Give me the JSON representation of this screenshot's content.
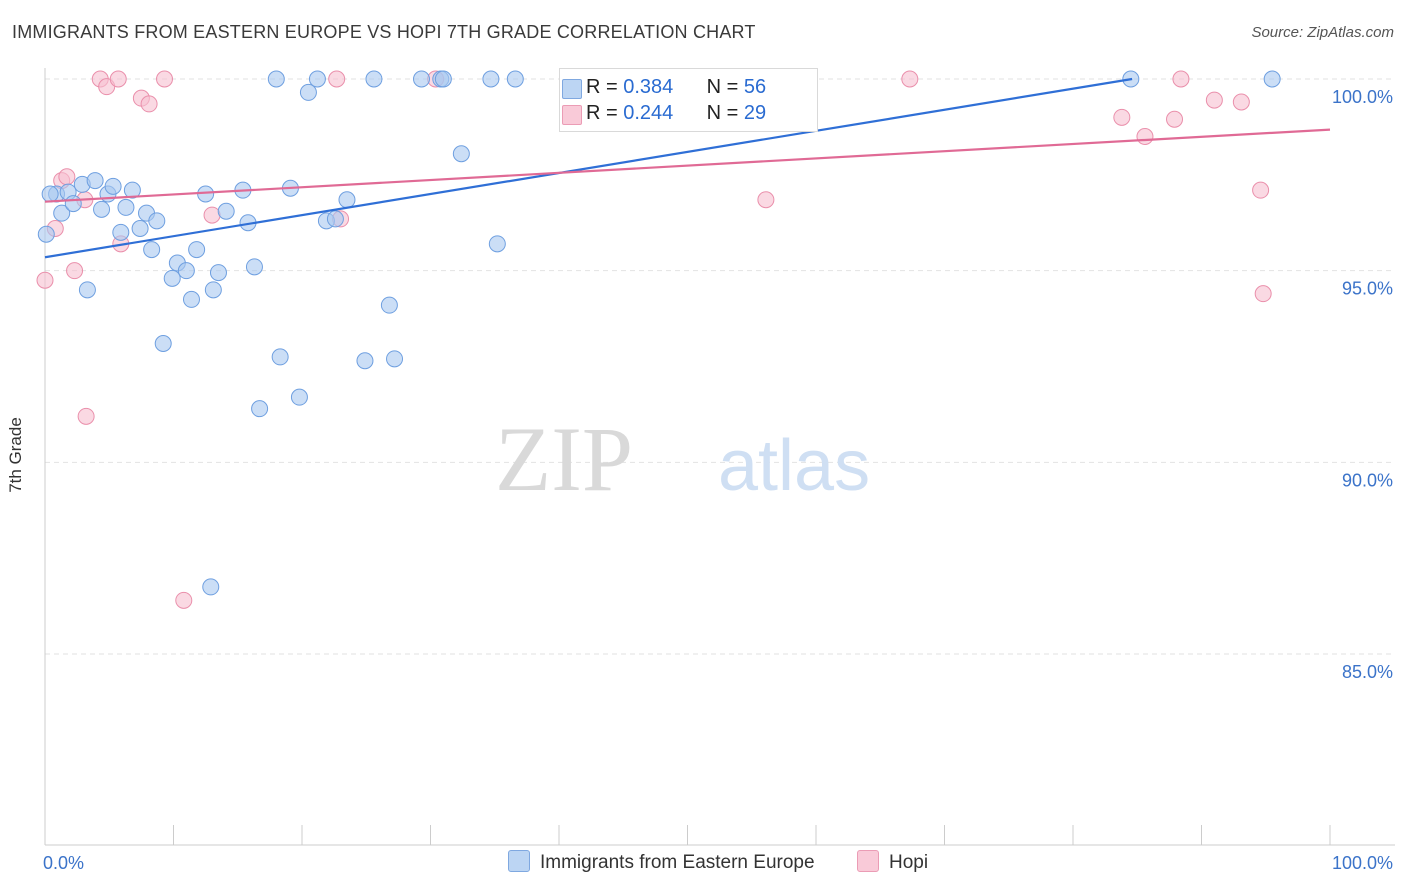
{
  "title": "IMMIGRANTS FROM EASTERN EUROPE VS HOPI 7TH GRADE CORRELATION CHART",
  "source": "Source: ZipAtlas.com",
  "watermark": {
    "zip": "ZIP",
    "atlas": "atlas"
  },
  "colors": {
    "blue_fill": "#a9c8f0",
    "blue_stroke": "#6e9fe0",
    "blue_line": "#2f6fd6",
    "pink_fill": "#f7bfd0",
    "pink_stroke": "#ea8fab",
    "pink_line": "#e06a95",
    "tick_label": "#3b73c9",
    "grid": "#e2e2e2"
  },
  "legend": {
    "rows": [
      {
        "r_label": "R =",
        "r_value": "0.384",
        "n_label": "N =",
        "n_value": "56"
      },
      {
        "r_label": "R =",
        "r_value": "0.244",
        "n_label": "N =",
        "n_value": "29"
      }
    ]
  },
  "bottom_legend": {
    "series1": "Immigrants from Eastern Europe",
    "series2": "Hopi"
  },
  "chart_data": {
    "type": "scatter",
    "title": "IMMIGRANTS FROM EASTERN EUROPE VS HOPI 7TH GRADE CORRELATION CHART",
    "xlabel": "",
    "ylabel": "7th Grade",
    "xlim": [
      0,
      100
    ],
    "ylim": [
      80.5,
      100.5
    ],
    "x_tick_labels": [
      "0.0%",
      "100.0%"
    ],
    "y_ticks": [
      85,
      90,
      95,
      100
    ],
    "y_tick_labels": [
      "85.0%",
      "90.0%",
      "95.0%",
      "100.0%"
    ],
    "grid": true,
    "legend_position": "top-center",
    "series": [
      {
        "name": "Immigrants from Eastern Europe",
        "color": "#a9c8f0",
        "trend": {
          "x": [
            0,
            84.6
          ],
          "y": [
            95.35,
            100.0
          ]
        },
        "points": [
          [
            0.1,
            95.95
          ],
          [
            0.9,
            97.0
          ],
          [
            1.3,
            96.5
          ],
          [
            1.8,
            97.05
          ],
          [
            2.2,
            96.75
          ],
          [
            2.9,
            97.25
          ],
          [
            3.3,
            94.5
          ],
          [
            3.9,
            97.35
          ],
          [
            4.4,
            96.6
          ],
          [
            4.9,
            97.0
          ],
          [
            5.3,
            97.2
          ],
          [
            5.9,
            96.0
          ],
          [
            6.3,
            96.65
          ],
          [
            6.8,
            97.1
          ],
          [
            7.4,
            96.1
          ],
          [
            7.9,
            96.5
          ],
          [
            8.3,
            95.55
          ],
          [
            8.7,
            96.3
          ],
          [
            9.2,
            93.1
          ],
          [
            9.9,
            94.8
          ],
          [
            10.3,
            95.2
          ],
          [
            11.0,
            95.0
          ],
          [
            11.4,
            94.25
          ],
          [
            11.8,
            95.55
          ],
          [
            12.5,
            97.0
          ],
          [
            13.1,
            94.5
          ],
          [
            13.5,
            94.95
          ],
          [
            14.1,
            96.55
          ],
          [
            15.4,
            97.1
          ],
          [
            15.8,
            96.25
          ],
          [
            16.3,
            95.1
          ],
          [
            16.7,
            91.4
          ],
          [
            18.0,
            100.0
          ],
          [
            18.3,
            92.75
          ],
          [
            19.1,
            97.15
          ],
          [
            19.8,
            91.7
          ],
          [
            20.5,
            99.65
          ],
          [
            21.2,
            100.0
          ],
          [
            21.9,
            96.3
          ],
          [
            22.6,
            96.35
          ],
          [
            23.5,
            96.85
          ],
          [
            24.9,
            92.65
          ],
          [
            25.6,
            100.0
          ],
          [
            26.8,
            94.1
          ],
          [
            27.2,
            92.7
          ],
          [
            29.3,
            100.0
          ],
          [
            30.8,
            100.0
          ],
          [
            32.4,
            98.05
          ],
          [
            34.7,
            100.0
          ],
          [
            35.2,
            95.7
          ],
          [
            36.6,
            100.0
          ],
          [
            12.9,
            86.75
          ],
          [
            84.5,
            100.0
          ],
          [
            95.5,
            100.0
          ],
          [
            31.0,
            100.0
          ],
          [
            0.4,
            97.0
          ]
        ]
      },
      {
        "name": "Hopi",
        "color": "#f7bfd0",
        "trend": {
          "x": [
            0,
            100
          ],
          "y": [
            96.8,
            98.68
          ]
        },
        "points": [
          [
            0.0,
            94.75
          ],
          [
            0.8,
            96.1
          ],
          [
            1.3,
            97.35
          ],
          [
            1.7,
            97.45
          ],
          [
            2.3,
            95.0
          ],
          [
            3.1,
            96.85
          ],
          [
            3.2,
            91.2
          ],
          [
            4.3,
            100.0
          ],
          [
            4.8,
            99.8
          ],
          [
            5.7,
            100.0
          ],
          [
            5.9,
            95.7
          ],
          [
            7.5,
            99.5
          ],
          [
            8.1,
            99.35
          ],
          [
            9.3,
            100.0
          ],
          [
            10.8,
            86.4
          ],
          [
            13.0,
            96.45
          ],
          [
            23.0,
            96.35
          ],
          [
            22.7,
            100.0
          ],
          [
            30.4,
            100.0
          ],
          [
            56.1,
            96.85
          ],
          [
            67.3,
            100.0
          ],
          [
            83.8,
            99.0
          ],
          [
            85.6,
            98.5
          ],
          [
            87.9,
            98.95
          ],
          [
            88.4,
            100.0
          ],
          [
            91.0,
            99.45
          ],
          [
            93.1,
            99.4
          ],
          [
            94.6,
            97.1
          ],
          [
            94.8,
            94.4
          ]
        ]
      }
    ]
  }
}
